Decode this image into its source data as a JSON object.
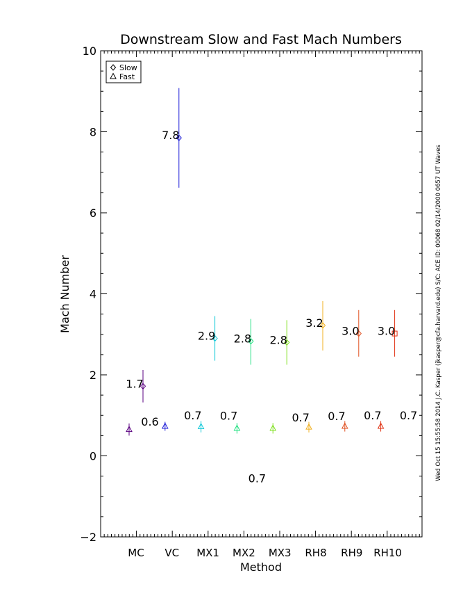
{
  "chart_data": {
    "type": "scatter",
    "title": "Downstream Slow and Fast Mach Numbers",
    "xlabel": "Method",
    "ylabel": "Mach Number",
    "ylim": [
      -2,
      10
    ],
    "yticks": [
      -2,
      0,
      2,
      4,
      6,
      8,
      10
    ],
    "categories": [
      "MC",
      "VC",
      "MX1",
      "MX2",
      "MX3",
      "RH8",
      "RH9",
      "RH10"
    ],
    "legend": {
      "position": "top-left",
      "entries": [
        {
          "marker": "diamond",
          "label": "Slow"
        },
        {
          "marker": "triangle",
          "label": "Fast"
        }
      ]
    },
    "colors": [
      "#5a0080",
      "#2020d8",
      "#10c8d8",
      "#20e080",
      "#80e020",
      "#f0b020",
      "#e05020",
      "#e03010"
    ],
    "series": [
      {
        "name": "Slow",
        "marker": "diamond",
        "points": [
          {
            "category": "MC",
            "value": 1.72,
            "err": [
              1.32,
              2.12
            ],
            "label": "1.7"
          },
          {
            "category": "VC",
            "value": 7.85,
            "err": [
              6.62,
              9.08
            ],
            "label": "7.8"
          },
          {
            "category": "MX1",
            "value": 2.9,
            "err": [
              2.35,
              3.45
            ],
            "label": "2.9"
          },
          {
            "category": "MX2",
            "value": 2.83,
            "err": [
              2.25,
              3.38
            ],
            "label": "2.8"
          },
          {
            "category": "MX3",
            "value": 2.8,
            "err": [
              2.25,
              3.35
            ],
            "label": "2.8"
          },
          {
            "category": "RH8",
            "value": 3.22,
            "err": [
              2.6,
              3.82
            ],
            "label": "3.2"
          },
          {
            "category": "RH9",
            "value": 3.02,
            "err": [
              2.45,
              3.6
            ],
            "label": "3.0"
          },
          {
            "category": "RH10",
            "value": 3.02,
            "err": [
              2.45,
              3.6
            ],
            "label": "3.0",
            "marker": "square"
          }
        ]
      },
      {
        "name": "Fast",
        "marker": "triangle",
        "points": [
          {
            "category": "MC",
            "value": 0.65,
            "err": [
              0.5,
              0.8
            ],
            "label": "0.6"
          },
          {
            "category": "VC",
            "value": 0.73,
            "err": [
              0.62,
              0.84
            ],
            "label": "0.7"
          },
          {
            "category": "MX1",
            "value": 0.72,
            "err": [
              0.58,
              0.86
            ],
            "label": "0.7"
          },
          {
            "category": "MX2",
            "value": 0.68,
            "err": [
              0.55,
              0.81
            ],
            "label": "0.7"
          },
          {
            "category": "MX3",
            "value": 0.68,
            "err": [
              0.55,
              0.81
            ],
            "label": "0.7"
          },
          {
            "category": "RH8",
            "value": 0.71,
            "err": [
              0.58,
              0.84
            ],
            "label": "0.7"
          },
          {
            "category": "RH9",
            "value": 0.73,
            "err": [
              0.6,
              0.86
            ],
            "label": "0.7"
          },
          {
            "category": "RH10",
            "value": 0.73,
            "err": [
              0.6,
              0.86
            ],
            "label": "0.7"
          }
        ]
      }
    ],
    "annotation": "Wed Oct 15 15:55:58 2014   J.C. Kasper (jkasper@cfa.harvard.edu)   S/C: ACE ID: 00068 02/14/2000   0657 UT Waves"
  }
}
